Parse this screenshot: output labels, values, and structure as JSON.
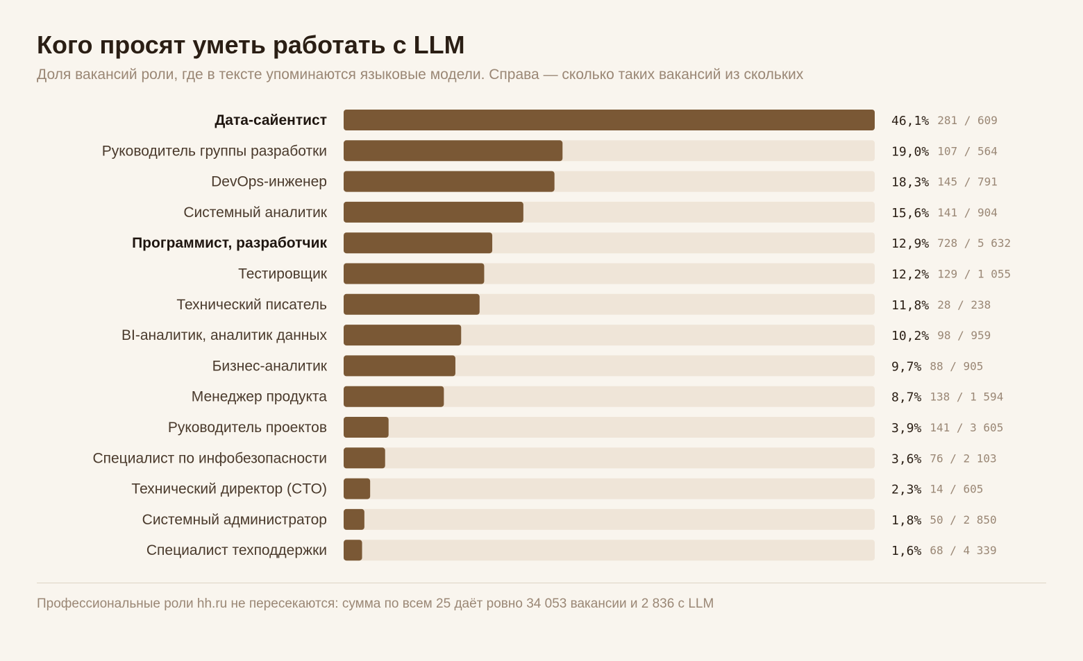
{
  "title": "Кого просят уметь работать с LLM",
  "subtitle": "Доля вакансий роли, где в тексте упоминаются языковые модели. Справа — сколько таких вакансий из скольких",
  "footnote": "Профессиональные роли hh.ru не пересекаются: сумма по всем 25 даёт ровно 34 053 вакансии и 2 836 с LLM",
  "colors": {
    "bar": "#7a5835",
    "track": "#efe5d8",
    "label": "#4a3a2c",
    "label_bold": "#1f1610",
    "value": "#2a1e14",
    "count": "#9a8775"
  },
  "chart_data": {
    "type": "bar",
    "orientation": "horizontal",
    "xlim": [
      0,
      46.1
    ],
    "categories": [
      "Дата-сайентист",
      "Руководитель группы разработки",
      "DevOps-инженер",
      "Системный аналитик",
      "Программист, разработчик",
      "Тестировщик",
      "Технический писатель",
      "BI-аналитик, аналитик данных",
      "Бизнес-аналитик",
      "Менеджер продукта",
      "Руководитель проектов",
      "Специалист по инфобезопасности",
      "Технический директор (CTO)",
      "Системный администратор",
      "Специалист техподдержки"
    ],
    "highlighted": [
      "Дата-сайентист",
      "Программист, разработчик"
    ],
    "values": [
      46.1,
      19.0,
      18.3,
      15.6,
      12.9,
      12.2,
      11.8,
      10.2,
      9.7,
      8.7,
      3.9,
      3.6,
      2.3,
      1.8,
      1.6
    ],
    "value_labels": [
      "46,1%",
      "19,0%",
      "18,3%",
      "15,6%",
      "12,9%",
      "12,2%",
      "11,8%",
      "10,2%",
      "9,7%",
      "8,7%",
      "3,9%",
      "3,6%",
      "2,3%",
      "1,8%",
      "1,6%"
    ],
    "count_labels": [
      "281 / 609",
      "107 / 564",
      "145 / 791",
      "141 / 904",
      "728 / 5 632",
      "129 / 1 055",
      "28 / 238",
      "98 / 959",
      "88 / 905",
      "138 / 1 594",
      "141 / 3 605",
      "76 / 2 103",
      "14 / 605",
      "50 / 2 850",
      "68 / 4 339"
    ]
  }
}
